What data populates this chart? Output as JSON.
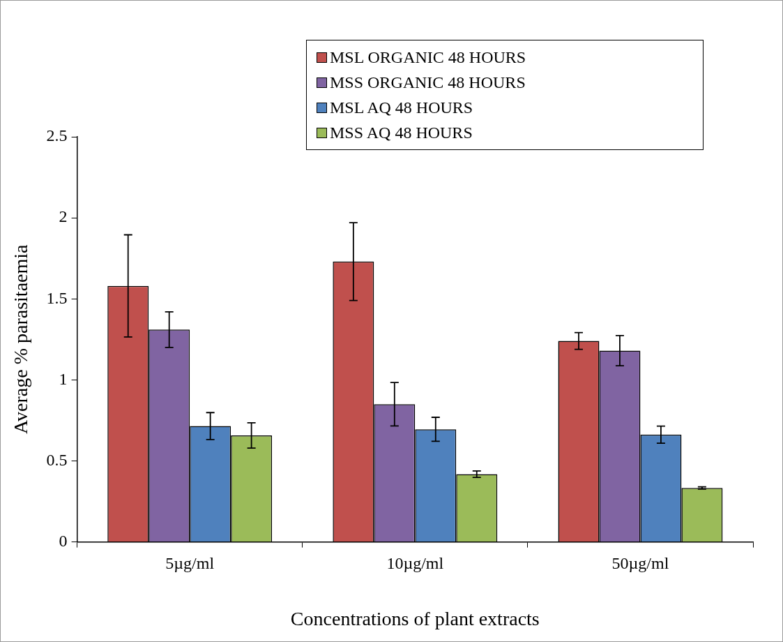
{
  "chart_data": {
    "type": "bar",
    "xlabel": "Concentrations of plant extracts",
    "ylabel": "Average % parasitaemia",
    "categories": [
      "5µg/ml",
      "10µg/ml",
      "50µg/ml"
    ],
    "series": [
      {
        "name": "MSL ORGANIC 48 HOURS",
        "color": "#c0504d",
        "values": [
          1.58,
          1.73,
          1.24
        ],
        "errors": [
          0.315,
          0.24,
          0.052
        ]
      },
      {
        "name": "MSS ORGANIC 48 HOURS",
        "color": "#8064a2",
        "values": [
          1.31,
          0.85,
          1.18
        ],
        "errors": [
          0.11,
          0.134,
          0.093
        ]
      },
      {
        "name": "MSL AQ 48 HOURS",
        "color": "#4f81bd",
        "values": [
          0.715,
          0.695,
          0.662
        ],
        "errors": [
          0.083,
          0.074,
          0.053
        ]
      },
      {
        "name": "MSS AQ 48 HOURS",
        "color": "#9bbb59",
        "values": [
          0.657,
          0.418,
          0.333
        ],
        "errors": [
          0.078,
          0.02,
          0.007
        ]
      }
    ],
    "ylim": [
      0,
      2.5
    ],
    "yticks": [
      0,
      0.5,
      1,
      1.5,
      2,
      2.5
    ],
    "grid": false,
    "legend": "top right"
  }
}
